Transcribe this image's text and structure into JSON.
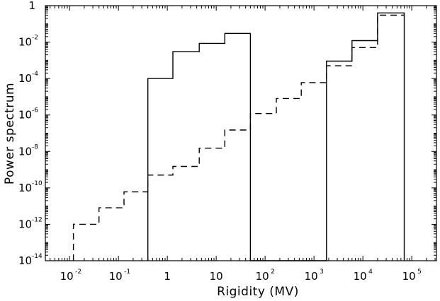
{
  "chart_data": {
    "type": "line",
    "xlabel": "Rigidity (MV)",
    "ylabel": "Power spectrum",
    "x_scale": "log",
    "y_scale": "log",
    "xlim": [
      0.0032,
      320000
    ],
    "ylim": [
      1e-14,
      1
    ],
    "x_ticks": [
      {
        "value": 0.01,
        "base": "10",
        "exp": "-2"
      },
      {
        "value": 0.1,
        "base": "10",
        "exp": "-1"
      },
      {
        "value": 1,
        "base": "1",
        "exp": ""
      },
      {
        "value": 10,
        "base": "10",
        "exp": ""
      },
      {
        "value": 100,
        "base": "10",
        "exp": "2"
      },
      {
        "value": 1000,
        "base": "10",
        "exp": "3"
      },
      {
        "value": 10000,
        "base": "10",
        "exp": "4"
      },
      {
        "value": 100000,
        "base": "10",
        "exp": "5"
      }
    ],
    "y_ticks": [
      {
        "value": 1,
        "base": "1",
        "exp": ""
      },
      {
        "value": 0.01,
        "base": "10",
        "exp": "-2"
      },
      {
        "value": 0.0001,
        "base": "10",
        "exp": "-4"
      },
      {
        "value": 1e-06,
        "base": "10",
        "exp": "-6"
      },
      {
        "value": 1e-08,
        "base": "10",
        "exp": "-8"
      },
      {
        "value": 1e-10,
        "base": "10",
        "exp": "-10"
      },
      {
        "value": 1e-12,
        "base": "10",
        "exp": "-12"
      },
      {
        "value": 1e-14,
        "base": "10",
        "exp": "-14"
      }
    ],
    "grid": false,
    "series": [
      {
        "style": "solid",
        "color": "#000000",
        "steps": [
          [
            0.4,
            1e-14
          ],
          [
            0.4,
            0.0001
          ],
          [
            1.3,
            0.0001
          ],
          [
            1.3,
            0.003
          ],
          [
            4.5,
            0.003
          ],
          [
            4.5,
            0.0085
          ],
          [
            15,
            0.0085
          ],
          [
            15,
            0.03
          ],
          [
            50,
            0.03
          ],
          [
            50,
            1e-14
          ],
          [
            1800,
            1e-14
          ],
          [
            1800,
            0.0009
          ],
          [
            6000,
            0.0009
          ],
          [
            6000,
            0.012
          ],
          [
            20000,
            0.012
          ],
          [
            20000,
            0.4
          ],
          [
            70000,
            0.4
          ],
          [
            70000,
            1e-14
          ]
        ]
      },
      {
        "style": "dashed",
        "color": "#000000",
        "steps": [
          [
            0.012,
            1e-14
          ],
          [
            0.012,
            1e-12
          ],
          [
            0.04,
            1e-12
          ],
          [
            0.04,
            8e-12
          ],
          [
            0.13,
            8e-12
          ],
          [
            0.13,
            6e-11
          ],
          [
            0.4,
            6e-11
          ],
          [
            0.4,
            5e-10
          ],
          [
            1.3,
            5e-10
          ],
          [
            1.3,
            1.5e-09
          ],
          [
            4.5,
            1.5e-09
          ],
          [
            4.5,
            1.5e-08
          ],
          [
            15,
            1.5e-08
          ],
          [
            15,
            1.5e-07
          ],
          [
            50,
            1.5e-07
          ],
          [
            50,
            1.2e-06
          ],
          [
            170,
            1.2e-06
          ],
          [
            170,
            8e-06
          ],
          [
            550,
            8e-06
          ],
          [
            550,
            6e-05
          ],
          [
            1800,
            6e-05
          ],
          [
            1800,
            0.0005
          ],
          [
            6000,
            0.0005
          ],
          [
            6000,
            0.005
          ],
          [
            20000,
            0.005
          ],
          [
            20000,
            0.3
          ],
          [
            70000,
            0.3
          ]
        ]
      }
    ]
  }
}
